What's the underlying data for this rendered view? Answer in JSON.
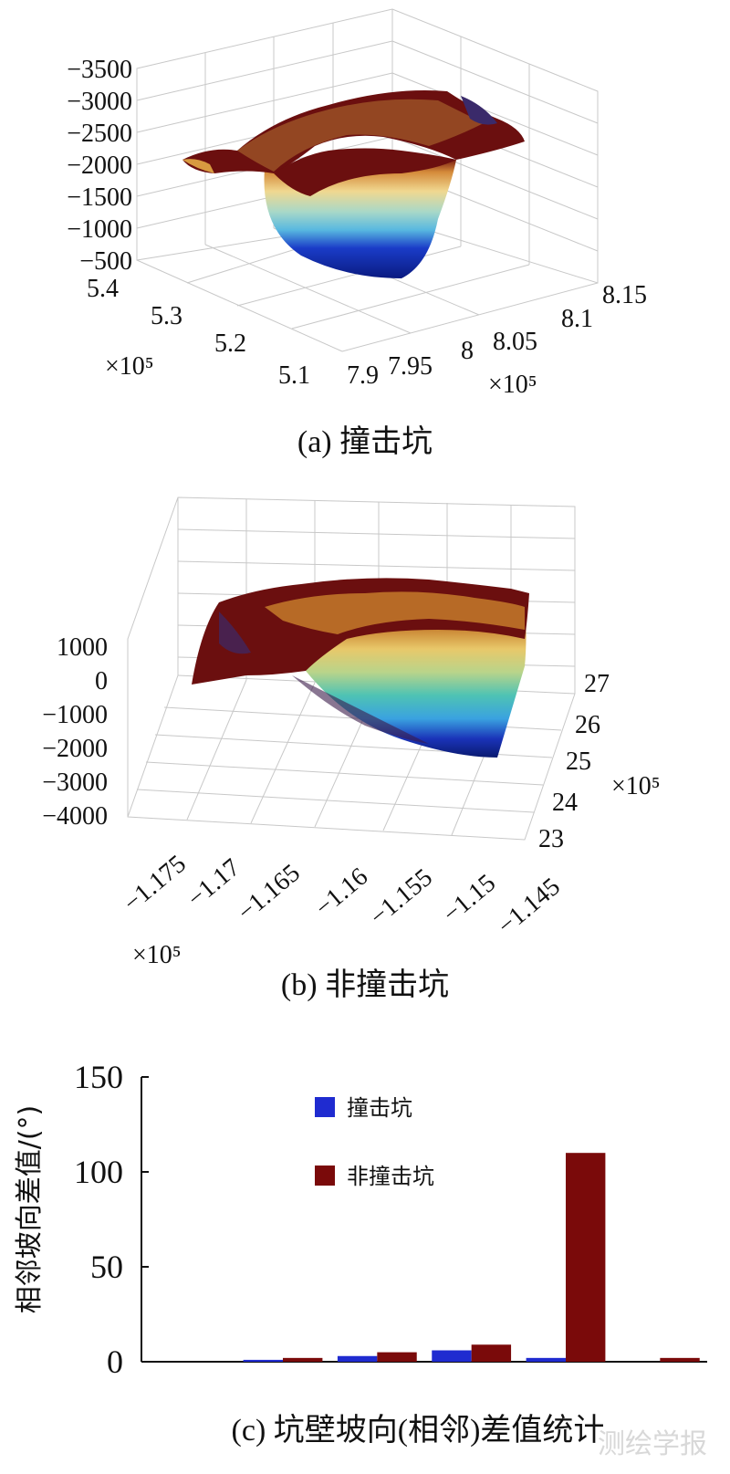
{
  "panels": [
    {
      "caption": "(a) 撞击坑",
      "chart_data": {
        "type": "surface",
        "z_ticks": [
          "−3500",
          "−3000",
          "−2500",
          "−2000",
          "−1500",
          "−1000",
          "−500"
        ],
        "x_ticks": [
          "5.4",
          "5.3",
          "5.2",
          "5.1"
        ],
        "y_ticks": [
          "7.9",
          "7.95",
          "8",
          "8.05",
          "8.1",
          "8.15"
        ],
        "x_exponent": "×10⁵",
        "y_exponent": "×10⁵"
      }
    },
    {
      "caption": "(b) 非撞击坑",
      "chart_data": {
        "type": "surface",
        "z_ticks": [
          "1000",
          "0",
          "−1000",
          "−2000",
          "−3000",
          "−4000"
        ],
        "x_ticks": [
          "−1.175",
          "−1.17",
          "−1.165",
          "−1.16",
          "−1.155",
          "−1.15",
          "−1.145"
        ],
        "y_ticks": [
          "27",
          "26",
          "25",
          "24",
          "23"
        ],
        "x_exponent": "×10⁵",
        "y_exponent": "×10⁵"
      }
    }
  ],
  "bar_caption": "(c) 坑壁坡向(相邻)差值统计",
  "chart_data": {
    "type": "bar",
    "ylabel": "相邻坡向差值/(°)",
    "ylim": [
      0,
      150
    ],
    "yticks": [
      "0",
      "50",
      "100",
      "150"
    ],
    "groups": 6,
    "series": [
      {
        "name": "撞击坑",
        "values": [
          0,
          1,
          3,
          6,
          2,
          0
        ]
      },
      {
        "name": "非撞击坑",
        "values": [
          0,
          2,
          5,
          9,
          110,
          2
        ]
      }
    ],
    "colors": [
      "#1f2bd0",
      "#7a0a0a"
    ]
  },
  "watermark": "测绘学报"
}
